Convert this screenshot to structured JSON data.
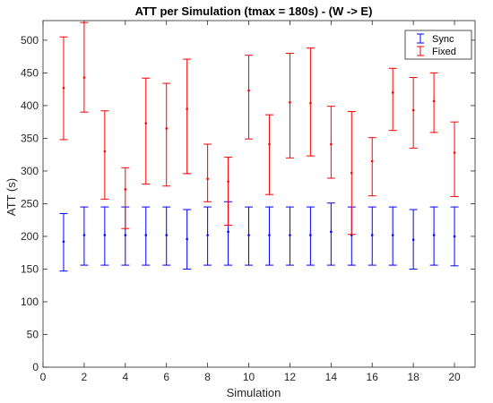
{
  "chart_data": {
    "type": "scatter",
    "title": "ATT per Simulation (tmax = 180s) - (W -> E)",
    "xlabel": "Simulation",
    "ylabel": "ATT (s)",
    "xlim": [
      0,
      21
    ],
    "ylim": [
      0,
      530
    ],
    "xticks": [
      0,
      2,
      4,
      6,
      8,
      10,
      12,
      14,
      16,
      18,
      20
    ],
    "yticks": [
      0,
      50,
      100,
      150,
      200,
      250,
      300,
      350,
      400,
      450,
      500
    ],
    "grid": false,
    "legend_position": "top-right",
    "x": [
      1,
      2,
      3,
      4,
      5,
      6,
      7,
      8,
      9,
      10,
      11,
      12,
      13,
      14,
      15,
      16,
      17,
      18,
      19,
      20
    ],
    "series": [
      {
        "name": "Sync",
        "color": "#0000ff",
        "mean": [
          192,
          202,
          202,
          202,
          202,
          202,
          196,
          202,
          207,
          202,
          202,
          202,
          202,
          207,
          202,
          202,
          202,
          195,
          202,
          200
        ],
        "lower": [
          147,
          156,
          156,
          156,
          156,
          156,
          150,
          156,
          156,
          156,
          156,
          156,
          156,
          156,
          156,
          156,
          156,
          150,
          156,
          155
        ],
        "upper": [
          235,
          245,
          245,
          245,
          245,
          245,
          241,
          245,
          253,
          245,
          245,
          245,
          245,
          251,
          245,
          245,
          245,
          241,
          245,
          245
        ]
      },
      {
        "name": "Fixed",
        "color": "#ff0000",
        "mean": [
          427,
          443,
          330,
          272,
          373,
          365,
          395,
          288,
          284,
          423,
          341,
          405,
          404,
          341,
          297,
          315,
          420,
          393,
          407,
          328
        ],
        "lower": [
          348,
          390,
          257,
          212,
          280,
          277,
          296,
          253,
          217,
          349,
          264,
          320,
          323,
          289,
          203,
          262,
          362,
          335,
          359,
          261
        ],
        "upper": [
          505,
          527,
          392,
          305,
          442,
          434,
          471,
          341,
          321,
          477,
          386,
          480,
          488,
          399,
          391,
          351,
          457,
          443,
          450,
          375
        ]
      }
    ]
  }
}
